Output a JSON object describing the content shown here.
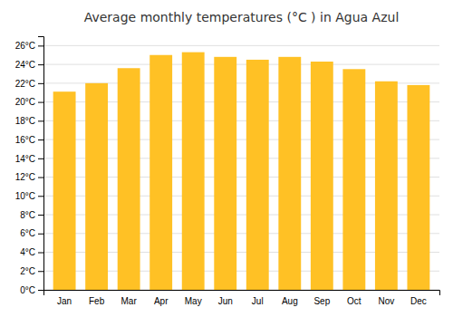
{
  "chart_data": {
    "type": "bar",
    "title": "Average monthly temperatures (°C ) in Agua Azul",
    "categories": [
      "Jan",
      "Feb",
      "Mar",
      "Apr",
      "May",
      "Jun",
      "Jul",
      "Aug",
      "Sep",
      "Oct",
      "Nov",
      "Dec"
    ],
    "values": [
      21.1,
      22.0,
      23.6,
      25.0,
      25.3,
      24.8,
      24.5,
      24.8,
      24.3,
      23.5,
      22.2,
      21.8
    ],
    "color": "#FFC125",
    "ylim": [
      0,
      27
    ],
    "yticks": [
      {
        "value": 0,
        "label": "0°C"
      },
      {
        "value": 2,
        "label": "2°C"
      },
      {
        "value": 4,
        "label": "4°C"
      },
      {
        "value": 6,
        "label": "6°C"
      },
      {
        "value": 8,
        "label": "8°C"
      },
      {
        "value": 10,
        "label": "10°C"
      },
      {
        "value": 12,
        "label": "12°C"
      },
      {
        "value": 14,
        "label": "14°C"
      },
      {
        "value": 16,
        "label": "16°C"
      },
      {
        "value": 18,
        "label": "18°C"
      },
      {
        "value": 20,
        "label": "20°C"
      },
      {
        "value": 22,
        "label": "22°C"
      },
      {
        "value": 24,
        "label": "24°C"
      },
      {
        "value": 26,
        "label": "26°C"
      }
    ],
    "grid": true
  }
}
